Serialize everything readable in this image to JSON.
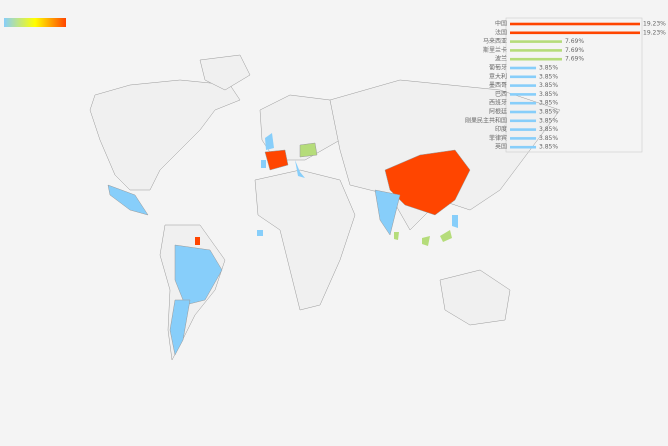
{
  "chart_data": {
    "type": "bar",
    "orientation": "horizontal",
    "categories": [
      "中国",
      "法国",
      "马来西亚",
      "斯里兰卡",
      "波兰",
      "葡萄牙",
      "意大利",
      "墨西哥",
      "巴西",
      "西班牙",
      "阿根廷",
      "刚果民主共和国",
      "印度",
      "菲律宾",
      "英国"
    ],
    "values": [
      19.23,
      19.23,
      7.69,
      7.69,
      7.69,
      3.85,
      3.85,
      3.85,
      3.85,
      3.85,
      3.85,
      3.85,
      3.85,
      3.85,
      3.85
    ],
    "value_labels": [
      "19.23%",
      "19.23%",
      "7.69%",
      "7.69%",
      "7.69%",
      "3.85%",
      "3.85%",
      "3.85%",
      "3.85%",
      "3.85%",
      "3.85%",
      "3.85%",
      "3.85%",
      "3.85%",
      "3.85%"
    ],
    "colors": [
      "#ff4500",
      "#ff4500",
      "#b5dc7a",
      "#b5dc7a",
      "#b5dc7a",
      "#87cefa",
      "#87cefa",
      "#87cefa",
      "#87cefa",
      "#87cefa",
      "#87cefa",
      "#87cefa",
      "#87cefa",
      "#87cefa",
      "#87cefa"
    ]
  }
}
